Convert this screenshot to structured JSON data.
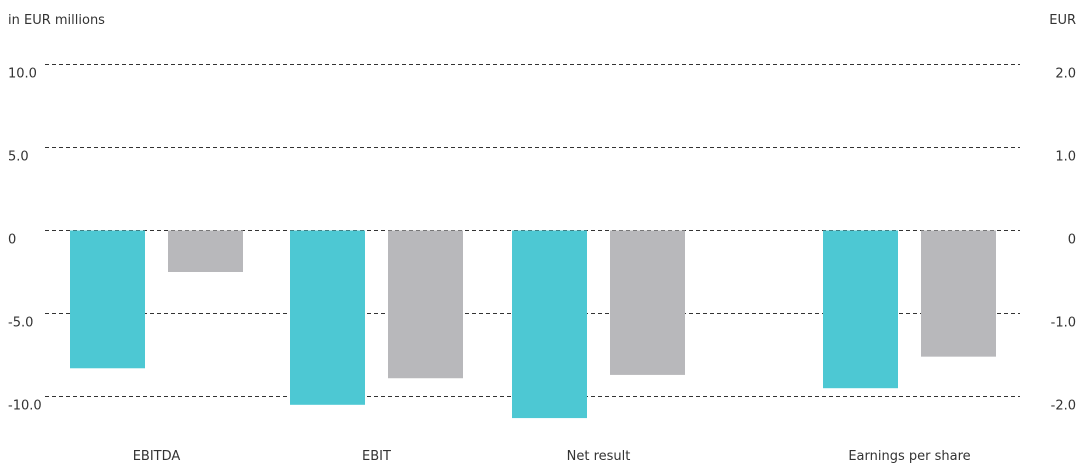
{
  "chart_data": {
    "type": "bar",
    "left_axis_unit": "in EUR millions",
    "right_axis_unit": "EUR",
    "categories": [
      "EBITDA",
      "EBIT",
      "Net result",
      "Earnings per share"
    ],
    "series": [
      {
        "color": "#4dc8d3",
        "values": [
          -8.3,
          -10.5,
          -11.3,
          -1.9
        ]
      },
      {
        "color": "#b8b8bb",
        "values": [
          -2.5,
          -8.9,
          -8.7,
          -1.52
        ]
      }
    ],
    "left_ticks": [
      "10.0",
      "5.0",
      "0",
      "-5.0",
      "-10.0"
    ],
    "left_tick_values": [
      10,
      5,
      0,
      -5,
      -10
    ],
    "right_ticks": [
      "2.0",
      "1.0",
      "0",
      "-1.0",
      "-2.0"
    ],
    "right_tick_values": [
      2,
      1,
      0,
      -1,
      -2
    ],
    "ylim_left": [
      -12,
      12
    ],
    "ylim_right": [
      -2.4,
      2.4
    ],
    "secondary_axis_categories": [
      "Earnings per share"
    ],
    "grid": true
  }
}
